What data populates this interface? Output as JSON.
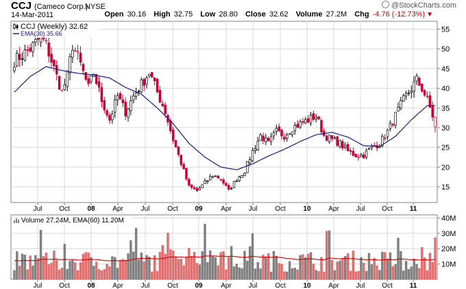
{
  "header": {
    "symbol": "CCJ",
    "company": "(Cameco Corp.)",
    "exchange": "NYSE",
    "date": "14-Mar-2011",
    "open_label": "Open",
    "open": "30.16",
    "high_label": "High",
    "high": "32.75",
    "low_label": "Low",
    "low": "28.80",
    "close_label": "Close",
    "close": "32.62",
    "volume_label": "Volume",
    "volume": "27.2M",
    "chg_label": "Chg",
    "chg": "-4.76 (-12.73%)",
    "brand": "@StockCharts.com"
  },
  "colors": {
    "up": "#000000",
    "down": "#cc0033",
    "ema": "#1a1a8c",
    "vol_up": "#808080",
    "vol_down": "#e07070",
    "vol_ema": "#cc0000",
    "grid": "#d8d8d8"
  },
  "chart_data": [
    {
      "type": "candlestick",
      "legend": [
        "CCJ (Weekly) 32.62",
        "EMA(30) 35.66"
      ],
      "series": [
        {
          "name": "CCJ (Weekly)"
        },
        {
          "name": "EMA(30)"
        }
      ],
      "ylim": [
        11,
        57
      ],
      "y_ticks": [
        15,
        20,
        25,
        30,
        35,
        40,
        45,
        50,
        55
      ],
      "x_tick_labels": [
        "Jul",
        "Oct",
        "08",
        "Apr",
        "Jul",
        "Oct",
        "09",
        "Apr",
        "Jul",
        "Oct",
        "10",
        "Apr",
        "Jul",
        "Oct",
        "11"
      ],
      "close_anchors": [
        [
          0,
          47
        ],
        [
          6,
          50
        ],
        [
          10,
          53
        ],
        [
          12,
          51
        ],
        [
          15,
          45
        ],
        [
          18,
          39
        ],
        [
          20,
          43
        ],
        [
          22,
          51
        ],
        [
          24,
          48
        ],
        [
          28,
          40
        ],
        [
          30,
          44
        ],
        [
          33,
          37
        ],
        [
          36,
          32
        ],
        [
          39,
          38
        ],
        [
          42,
          34
        ],
        [
          45,
          38
        ],
        [
          48,
          41
        ],
        [
          51,
          44
        ],
        [
          54,
          39
        ],
        [
          57,
          34
        ],
        [
          60,
          27
        ],
        [
          63,
          21
        ],
        [
          66,
          15
        ],
        [
          69,
          14
        ],
        [
          72,
          16
        ],
        [
          75,
          18
        ],
        [
          78,
          17
        ],
        [
          81,
          14
        ],
        [
          84,
          17
        ],
        [
          87,
          19
        ],
        [
          90,
          24
        ],
        [
          93,
          28
        ],
        [
          96,
          26
        ],
        [
          99,
          29
        ],
        [
          102,
          28
        ],
        [
          105,
          30
        ],
        [
          108,
          31
        ],
        [
          111,
          32
        ],
        [
          114,
          33
        ],
        [
          117,
          28
        ],
        [
          120,
          27
        ],
        [
          123,
          26
        ],
        [
          126,
          24
        ],
        [
          129,
          23
        ],
        [
          132,
          23
        ],
        [
          135,
          25
        ],
        [
          138,
          26
        ],
        [
          141,
          29
        ],
        [
          144,
          33
        ],
        [
          147,
          37
        ],
        [
          150,
          40
        ],
        [
          152,
          42
        ],
        [
          154,
          40
        ],
        [
          156,
          37
        ],
        [
          158,
          33
        ],
        [
          159,
          32.62
        ]
      ],
      "ema_anchors": [
        [
          0,
          39
        ],
        [
          6,
          43
        ],
        [
          12,
          45.5
        ],
        [
          18,
          44.5
        ],
        [
          24,
          43.8
        ],
        [
          30,
          43.4
        ],
        [
          36,
          42.6
        ],
        [
          42,
          40.2
        ],
        [
          48,
          38.5
        ],
        [
          54,
          35
        ],
        [
          60,
          31
        ],
        [
          66,
          26
        ],
        [
          72,
          22.5
        ],
        [
          78,
          20
        ],
        [
          84,
          19.3
        ],
        [
          90,
          20.8
        ],
        [
          96,
          22.8
        ],
        [
          102,
          24.5
        ],
        [
          108,
          26.5
        ],
        [
          114,
          28.2
        ],
        [
          120,
          28.8
        ],
        [
          126,
          27.6
        ],
        [
          132,
          25.4
        ],
        [
          138,
          25.2
        ],
        [
          144,
          27.8
        ],
        [
          150,
          32
        ],
        [
          156,
          35.6
        ],
        [
          159,
          35.66
        ]
      ]
    },
    {
      "type": "bar",
      "legend": [
        "Volume 27.24M, EMA(60) 11.20M"
      ],
      "series": [
        {
          "name": "Volume"
        },
        {
          "name": "EMA(60)"
        }
      ],
      "ylim": [
        0,
        42
      ],
      "y_ticks": [
        "10M",
        "20M",
        "30M",
        "40M"
      ],
      "x_tick_labels": [
        "Jul",
        "Oct",
        "08",
        "Apr",
        "Jul",
        "Oct",
        "09",
        "Apr",
        "Jul",
        "Oct",
        "10",
        "Apr",
        "Jul",
        "Oct",
        "11"
      ],
      "last_volume_millions": 27.24,
      "ema60_millions": 11.2
    }
  ]
}
